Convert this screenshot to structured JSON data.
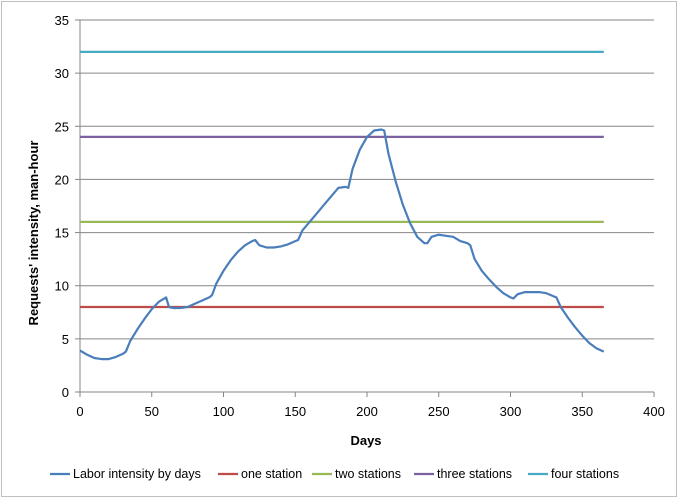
{
  "chart_data": {
    "type": "line",
    "xlabel": "Days",
    "ylabel": "Requests' intensity, man-hour",
    "xlim": [
      0,
      400
    ],
    "ylim": [
      0,
      35
    ],
    "xticks": [
      0,
      50,
      100,
      150,
      200,
      250,
      300,
      350,
      400
    ],
    "yticks": [
      0,
      5,
      10,
      15,
      20,
      25,
      30,
      35
    ],
    "grid": "horizontal",
    "legend": "bottom",
    "series": [
      {
        "name": "Labor intensity by days",
        "color": "#4a7ebb",
        "x": [
          0,
          5,
          10,
          15,
          20,
          25,
          30,
          32,
          35,
          40,
          45,
          50,
          55,
          60,
          62,
          65,
          70,
          75,
          80,
          85,
          90,
          92,
          95,
          100,
          105,
          110,
          115,
          120,
          122,
          125,
          130,
          135,
          140,
          145,
          150,
          152,
          155,
          160,
          165,
          170,
          175,
          180,
          185,
          187,
          190,
          195,
          200,
          205,
          210,
          212,
          215,
          220,
          225,
          230,
          235,
          240,
          242,
          245,
          250,
          255,
          260,
          265,
          270,
          272,
          275,
          280,
          285,
          290,
          295,
          300,
          302,
          305,
          310,
          315,
          320,
          325,
          330,
          332,
          335,
          340,
          345,
          350,
          355,
          360,
          365
        ],
        "values": [
          3.9,
          3.5,
          3.2,
          3.1,
          3.1,
          3.3,
          3.6,
          3.8,
          4.8,
          5.9,
          6.9,
          7.8,
          8.5,
          8.9,
          8.0,
          7.9,
          7.9,
          8.0,
          8.3,
          8.6,
          8.9,
          9.1,
          10.2,
          11.4,
          12.4,
          13.2,
          13.8,
          14.2,
          14.3,
          13.8,
          13.6,
          13.6,
          13.7,
          13.9,
          14.2,
          14.3,
          15.2,
          16.0,
          16.8,
          17.6,
          18.4,
          19.2,
          19.3,
          19.2,
          21.0,
          22.8,
          24.0,
          24.6,
          24.7,
          24.6,
          22.4,
          19.8,
          17.6,
          15.9,
          14.6,
          14.0,
          14.0,
          14.6,
          14.8,
          14.7,
          14.6,
          14.2,
          14.0,
          13.8,
          12.5,
          11.4,
          10.6,
          9.9,
          9.3,
          8.9,
          8.8,
          9.2,
          9.4,
          9.4,
          9.4,
          9.3,
          9.0,
          8.9,
          8.0,
          7.0,
          6.1,
          5.3,
          4.6,
          4.1,
          3.8
        ]
      },
      {
        "name": "one station",
        "color": "#be4b48",
        "x": [
          0,
          365
        ],
        "values": [
          8,
          8
        ]
      },
      {
        "name": "two stations",
        "color": "#98b954",
        "x": [
          0,
          365
        ],
        "values": [
          16,
          16
        ]
      },
      {
        "name": "three stations",
        "color": "#7d60a0",
        "x": [
          0,
          365
        ],
        "values": [
          24,
          24
        ]
      },
      {
        "name": "four stations",
        "color": "#46aac5",
        "x": [
          0,
          365
        ],
        "values": [
          32,
          32
        ]
      }
    ]
  }
}
